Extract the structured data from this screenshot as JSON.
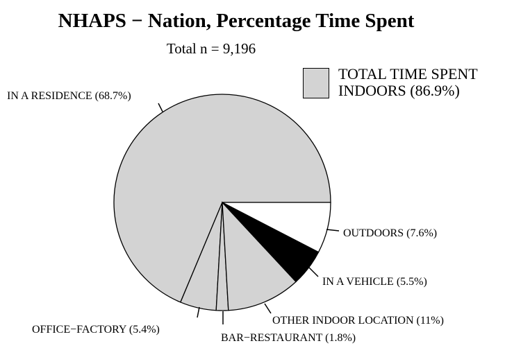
{
  "chart_data": {
    "type": "pie",
    "title": "NHAPS − Nation, Percentage Time Spent",
    "subtitle": "Total n = 9,196",
    "legend": {
      "label": "TOTAL TIME SPENT\nINDOORS (86.9%)",
      "color": "#d3d3d3",
      "position": "top-right"
    },
    "slices": [
      {
        "label": "IN A RESIDENCE (68.7%)",
        "value": 68.7,
        "color": "#d3d3d3"
      },
      {
        "label": "OFFICE−FACTORY (5.4%)",
        "value": 5.4,
        "color": "#d3d3d3"
      },
      {
        "label": "BAR−RESTAURANT (1.8%)",
        "value": 1.8,
        "color": "#d3d3d3"
      },
      {
        "label": "OTHER INDOOR LOCATION (11%)",
        "value": 11.0,
        "color": "#d3d3d3"
      },
      {
        "label": "IN A VEHICLE (5.5%)",
        "value": 5.5,
        "color": "#000000"
      },
      {
        "label": "OUTDOORS (7.6%)",
        "value": 7.6,
        "color": "#ffffff"
      }
    ]
  }
}
